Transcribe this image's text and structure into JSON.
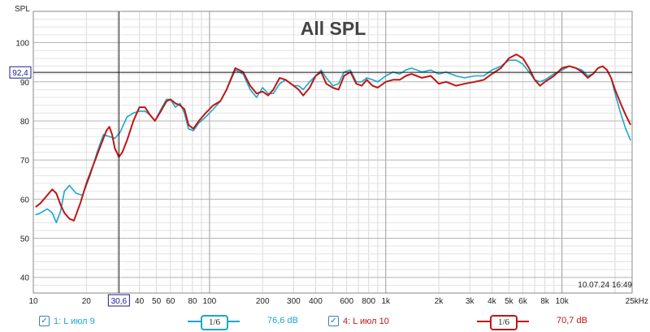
{
  "colors": {
    "cyan": "#1aa7c9",
    "red": "#c01515",
    "crosshair_label": "#1a1a8c"
  },
  "cursor": {
    "x_readout": "30,6",
    "y_readout": "92,4"
  },
  "timestamp": "10.07.24 16:49",
  "legend": {
    "series1": {
      "label": "1: L июл 9",
      "smoothing": "1/6",
      "value": "76,6 dB",
      "checked": "✓"
    },
    "series2": {
      "label": "4: L июл 10",
      "smoothing": "1/6",
      "value": "70,7 dB",
      "checked": "✓"
    }
  },
  "chart_data": {
    "type": "line",
    "title": "All SPL",
    "ylabel": "SPL",
    "xlabel": "",
    "x_scale": "log",
    "xlim": [
      10,
      25000
    ],
    "ylim": [
      36,
      108
    ],
    "grid": true,
    "xtick_labels": [
      {
        "v": 10,
        "t": "10"
      },
      {
        "v": 20,
        "t": "20"
      },
      {
        "v": 40,
        "t": "40"
      },
      {
        "v": 50,
        "t": "50"
      },
      {
        "v": 60,
        "t": "60"
      },
      {
        "v": 80,
        "t": "80"
      },
      {
        "v": 100,
        "t": "100"
      },
      {
        "v": 200,
        "t": "200"
      },
      {
        "v": 300,
        "t": "300"
      },
      {
        "v": 400,
        "t": "400"
      },
      {
        "v": 600,
        "t": "600"
      },
      {
        "v": 800,
        "t": "800"
      },
      {
        "v": 1000,
        "t": "1k"
      },
      {
        "v": 2000,
        "t": "2k"
      },
      {
        "v": 3000,
        "t": "3k"
      },
      {
        "v": 4000,
        "t": "4k"
      },
      {
        "v": 5000,
        "t": "5k"
      },
      {
        "v": 6000,
        "t": "6k"
      },
      {
        "v": 8000,
        "t": "8k"
      },
      {
        "v": 10000,
        "t": "10k"
      },
      {
        "v": 25000,
        "t": "25kHz"
      }
    ],
    "yticks": [
      40,
      50,
      60,
      70,
      80,
      90,
      100
    ],
    "cursor_x": 30.6,
    "cursor_y": 92.4,
    "series": [
      {
        "name": "1: L июл 9",
        "color": "#1aa7c9",
        "points": [
          [
            10.3,
            56
          ],
          [
            11,
            56.5
          ],
          [
            12,
            57.5
          ],
          [
            12.8,
            56.5
          ],
          [
            13.5,
            54
          ],
          [
            14.3,
            57
          ],
          [
            15,
            62
          ],
          [
            16,
            63.5
          ],
          [
            17.5,
            61.5
          ],
          [
            19,
            61
          ],
          [
            21,
            66
          ],
          [
            23,
            72
          ],
          [
            25,
            76.5
          ],
          [
            27,
            76
          ],
          [
            29,
            75.5
          ],
          [
            31,
            77
          ],
          [
            34,
            81
          ],
          [
            37,
            82
          ],
          [
            40,
            82.5
          ],
          [
            43,
            82.5
          ],
          [
            46,
            81.5
          ],
          [
            49,
            80
          ],
          [
            53,
            83
          ],
          [
            57,
            85.5
          ],
          [
            60,
            85.5
          ],
          [
            64,
            83.5
          ],
          [
            68,
            84.5
          ],
          [
            72,
            82
          ],
          [
            76,
            78
          ],
          [
            81,
            77.5
          ],
          [
            87,
            79.5
          ],
          [
            95,
            81
          ],
          [
            105,
            83
          ],
          [
            115,
            85
          ],
          [
            125,
            88
          ],
          [
            140,
            93
          ],
          [
            155,
            92
          ],
          [
            170,
            88
          ],
          [
            185,
            86
          ],
          [
            200,
            88.5
          ],
          [
            215,
            87
          ],
          [
            230,
            87
          ],
          [
            250,
            89.5
          ],
          [
            270,
            90.5
          ],
          [
            300,
            89
          ],
          [
            320,
            89
          ],
          [
            340,
            88
          ],
          [
            370,
            90
          ],
          [
            400,
            91.5
          ],
          [
            430,
            93
          ],
          [
            460,
            91
          ],
          [
            500,
            89
          ],
          [
            540,
            89.5
          ],
          [
            580,
            92.5
          ],
          [
            630,
            93
          ],
          [
            680,
            90
          ],
          [
            730,
            90
          ],
          [
            780,
            91
          ],
          [
            840,
            90.5
          ],
          [
            900,
            90
          ],
          [
            1000,
            91.5
          ],
          [
            1100,
            92.5
          ],
          [
            1200,
            92
          ],
          [
            1300,
            93
          ],
          [
            1400,
            93.5
          ],
          [
            1500,
            93
          ],
          [
            1600,
            92.5
          ],
          [
            1800,
            93
          ],
          [
            2000,
            92
          ],
          [
            2200,
            92.5
          ],
          [
            2500,
            91.5
          ],
          [
            2800,
            91
          ],
          [
            3200,
            91.5
          ],
          [
            3600,
            91.5
          ],
          [
            4000,
            93
          ],
          [
            4500,
            94
          ],
          [
            5000,
            95.5
          ],
          [
            5500,
            95.5
          ],
          [
            6000,
            94.5
          ],
          [
            6500,
            92.5
          ],
          [
            7000,
            90.5
          ],
          [
            7500,
            90
          ],
          [
            8000,
            90.5
          ],
          [
            9000,
            92
          ],
          [
            10000,
            93
          ],
          [
            11000,
            94
          ],
          [
            12000,
            93.5
          ],
          [
            13000,
            93
          ],
          [
            14000,
            91.5
          ],
          [
            15000,
            92
          ],
          [
            16000,
            93.5
          ],
          [
            17000,
            94
          ],
          [
            18000,
            93
          ],
          [
            19000,
            91
          ],
          [
            20000,
            87
          ],
          [
            21500,
            82
          ],
          [
            23000,
            78
          ],
          [
            24500,
            75
          ]
        ]
      },
      {
        "name": "4: L июл 10",
        "color": "#c01515",
        "points": [
          [
            10.3,
            58
          ],
          [
            11,
            59
          ],
          [
            12,
            61
          ],
          [
            12.8,
            62.5
          ],
          [
            13.5,
            61.5
          ],
          [
            14.3,
            58.5
          ],
          [
            15,
            56.5
          ],
          [
            16,
            55
          ],
          [
            17,
            54.5
          ],
          [
            18.5,
            59
          ],
          [
            20,
            64
          ],
          [
            22,
            69
          ],
          [
            24,
            73.5
          ],
          [
            26,
            77.5
          ],
          [
            27,
            78.5
          ],
          [
            28,
            76.5
          ],
          [
            29,
            73
          ],
          [
            30.6,
            70.8
          ],
          [
            32,
            72
          ],
          [
            34,
            75
          ],
          [
            37,
            80
          ],
          [
            40,
            83.5
          ],
          [
            43,
            83.5
          ],
          [
            46,
            81.5
          ],
          [
            49,
            80
          ],
          [
            53,
            82.5
          ],
          [
            57,
            85
          ],
          [
            60,
            85.5
          ],
          [
            64,
            84.5
          ],
          [
            68,
            84
          ],
          [
            72,
            83
          ],
          [
            76,
            79
          ],
          [
            81,
            78
          ],
          [
            87,
            80
          ],
          [
            95,
            82
          ],
          [
            105,
            84
          ],
          [
            115,
            85
          ],
          [
            125,
            88
          ],
          [
            140,
            93.5
          ],
          [
            155,
            92.5
          ],
          [
            170,
            89
          ],
          [
            185,
            87
          ],
          [
            200,
            87.5
          ],
          [
            215,
            86.5
          ],
          [
            230,
            88
          ],
          [
            250,
            91
          ],
          [
            270,
            90.5
          ],
          [
            300,
            89
          ],
          [
            320,
            88
          ],
          [
            340,
            86.5
          ],
          [
            370,
            88.5
          ],
          [
            400,
            91.5
          ],
          [
            430,
            92.5
          ],
          [
            460,
            89.5
          ],
          [
            500,
            88.5
          ],
          [
            540,
            88
          ],
          [
            580,
            91.5
          ],
          [
            630,
            92.5
          ],
          [
            680,
            89.5
          ],
          [
            730,
            89
          ],
          [
            780,
            90.5
          ],
          [
            840,
            89
          ],
          [
            900,
            88.5
          ],
          [
            1000,
            90
          ],
          [
            1100,
            90.5
          ],
          [
            1200,
            90.5
          ],
          [
            1300,
            91.5
          ],
          [
            1400,
            92
          ],
          [
            1500,
            91.5
          ],
          [
            1600,
            91
          ],
          [
            1800,
            91.5
          ],
          [
            2000,
            89.5
          ],
          [
            2200,
            90
          ],
          [
            2500,
            89
          ],
          [
            2800,
            89.5
          ],
          [
            3200,
            90
          ],
          [
            3600,
            90.5
          ],
          [
            4000,
            92
          ],
          [
            4500,
            93.5
          ],
          [
            5000,
            96
          ],
          [
            5500,
            97
          ],
          [
            6000,
            96
          ],
          [
            6500,
            93.5
          ],
          [
            7000,
            90.5
          ],
          [
            7500,
            89
          ],
          [
            8000,
            90
          ],
          [
            9000,
            91.5
          ],
          [
            10000,
            93.5
          ],
          [
            11000,
            94
          ],
          [
            12000,
            93.5
          ],
          [
            13000,
            92.5
          ],
          [
            14000,
            91
          ],
          [
            15000,
            92
          ],
          [
            16000,
            93.5
          ],
          [
            17000,
            94
          ],
          [
            18000,
            93
          ],
          [
            19000,
            91
          ],
          [
            20000,
            88
          ],
          [
            21500,
            84.5
          ],
          [
            23000,
            81.5
          ],
          [
            24500,
            79
          ]
        ]
      }
    ]
  }
}
